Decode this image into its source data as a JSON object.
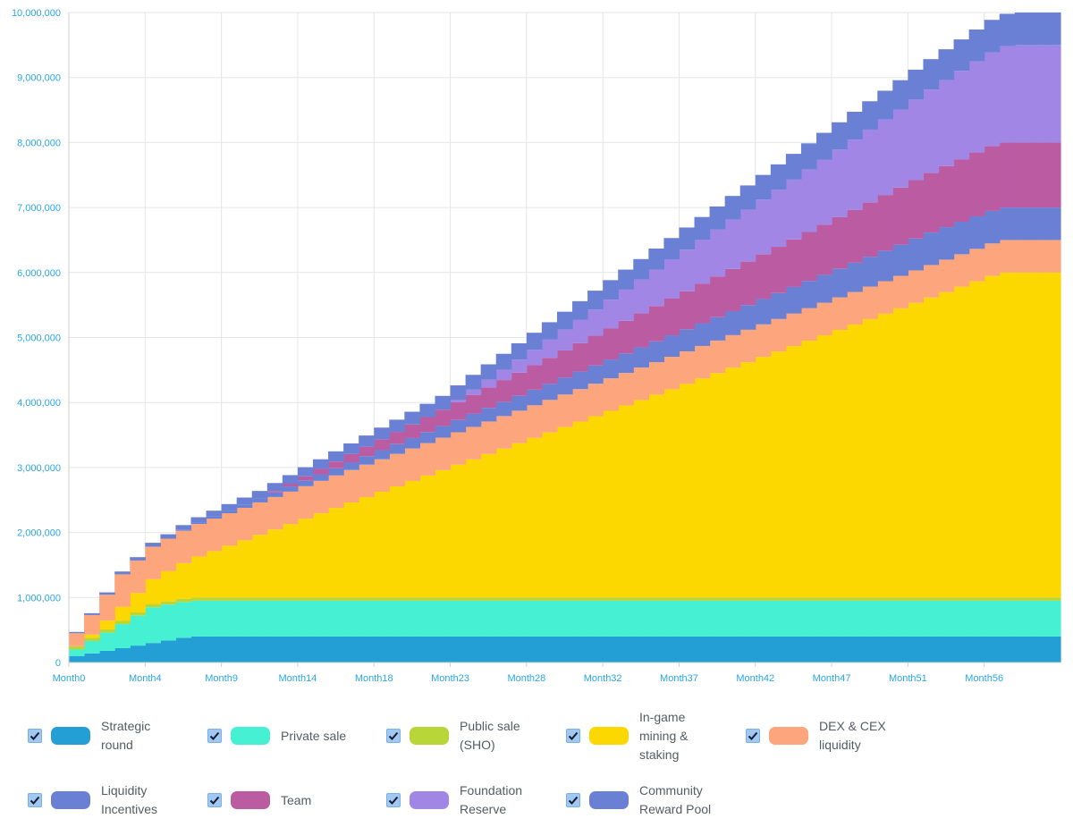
{
  "chart_data": {
    "type": "area",
    "step": true,
    "stacked": true,
    "title": "",
    "xlabel": "",
    "ylabel": "",
    "ylim": [
      0,
      10000000
    ],
    "yticks": [
      0,
      1000000,
      2000000,
      3000000,
      4000000,
      5000000,
      6000000,
      7000000,
      8000000,
      9000000,
      10000000
    ],
    "ytick_labels": [
      "0",
      "1,000,000",
      "2,000,000",
      "3,000,000",
      "4,000,000",
      "5,000,000",
      "6,000,000",
      "7,000,000",
      "8,000,000",
      "9,000,000",
      "10,000,000"
    ],
    "x_count": 65,
    "x_tick_indices": [
      0,
      5,
      10,
      15,
      20,
      25,
      30,
      35,
      40,
      45,
      50,
      55,
      60
    ],
    "x_tick_labels": [
      "Month0",
      "Month4",
      "Month9",
      "Month14",
      "Month18",
      "Month23",
      "Month28",
      "Month32",
      "Month37",
      "Month42",
      "Month47",
      "Month51",
      "Month56"
    ],
    "grid": true,
    "legend_position": "bottom",
    "series": [
      {
        "name": "Strategic round",
        "label_lines": [
          "Strategic",
          "round"
        ],
        "color": "#239fd6",
        "schedule": {
          "start": 0,
          "initial": 100000,
          "per_month": 40000,
          "max": 400000
        }
      },
      {
        "name": "Private sale",
        "label_lines": [
          "Private sale"
        ],
        "color": "#45f0d3",
        "schedule": {
          "start": 0,
          "initial": 100000,
          "per_month": 90000,
          "max": 550000
        }
      },
      {
        "name": "Public sale (SHO)",
        "label_lines": [
          "Public sale",
          "(SHO)"
        ],
        "color": "#b8d638",
        "schedule": {
          "start": 0,
          "initial": 50000,
          "per_month": 10000,
          "max": 50000
        }
      },
      {
        "name": "In-game mining & staking",
        "label_lines": [
          "In-game",
          "mining &",
          "staking"
        ],
        "color": "#fdd700",
        "schedule": {
          "start": 1,
          "initial": 50000,
          "per_month": 83000,
          "max": 5000000
        }
      },
      {
        "name": "DEX & CEX liquidity",
        "label_lines": [
          "DEX & CEX",
          "liquidity"
        ],
        "color": "#fda57c",
        "schedule": {
          "start": 0,
          "initial": 200000,
          "per_month": 100000,
          "max": 500000
        }
      },
      {
        "name": "Liquidity Incentives",
        "label_lines": [
          "Liquidity",
          "Incentives"
        ],
        "color": "#6a80d5",
        "schedule": {
          "start": 6,
          "initial": 0,
          "per_month": 10000,
          "max": 500000
        }
      },
      {
        "name": "Team",
        "label_lines": [
          "Team"
        ],
        "color": "#bb5ca3",
        "schedule": {
          "start": 12,
          "initial": 0,
          "per_month": 20900,
          "max": 1000000
        }
      },
      {
        "name": "Foundation Reserve",
        "label_lines": [
          "Foundation",
          "Reserve"
        ],
        "color": "#a286e6",
        "schedule": {
          "start": 24,
          "initial": 0,
          "per_month": 40000,
          "max": 1500000
        }
      },
      {
        "name": "Community Reward Pool",
        "label_lines": [
          "Community",
          "Reward Pool"
        ],
        "color": "#6a80d5",
        "schedule": {
          "start": 0,
          "initial": 20000,
          "per_month": 8000,
          "max": 500000
        }
      }
    ]
  }
}
